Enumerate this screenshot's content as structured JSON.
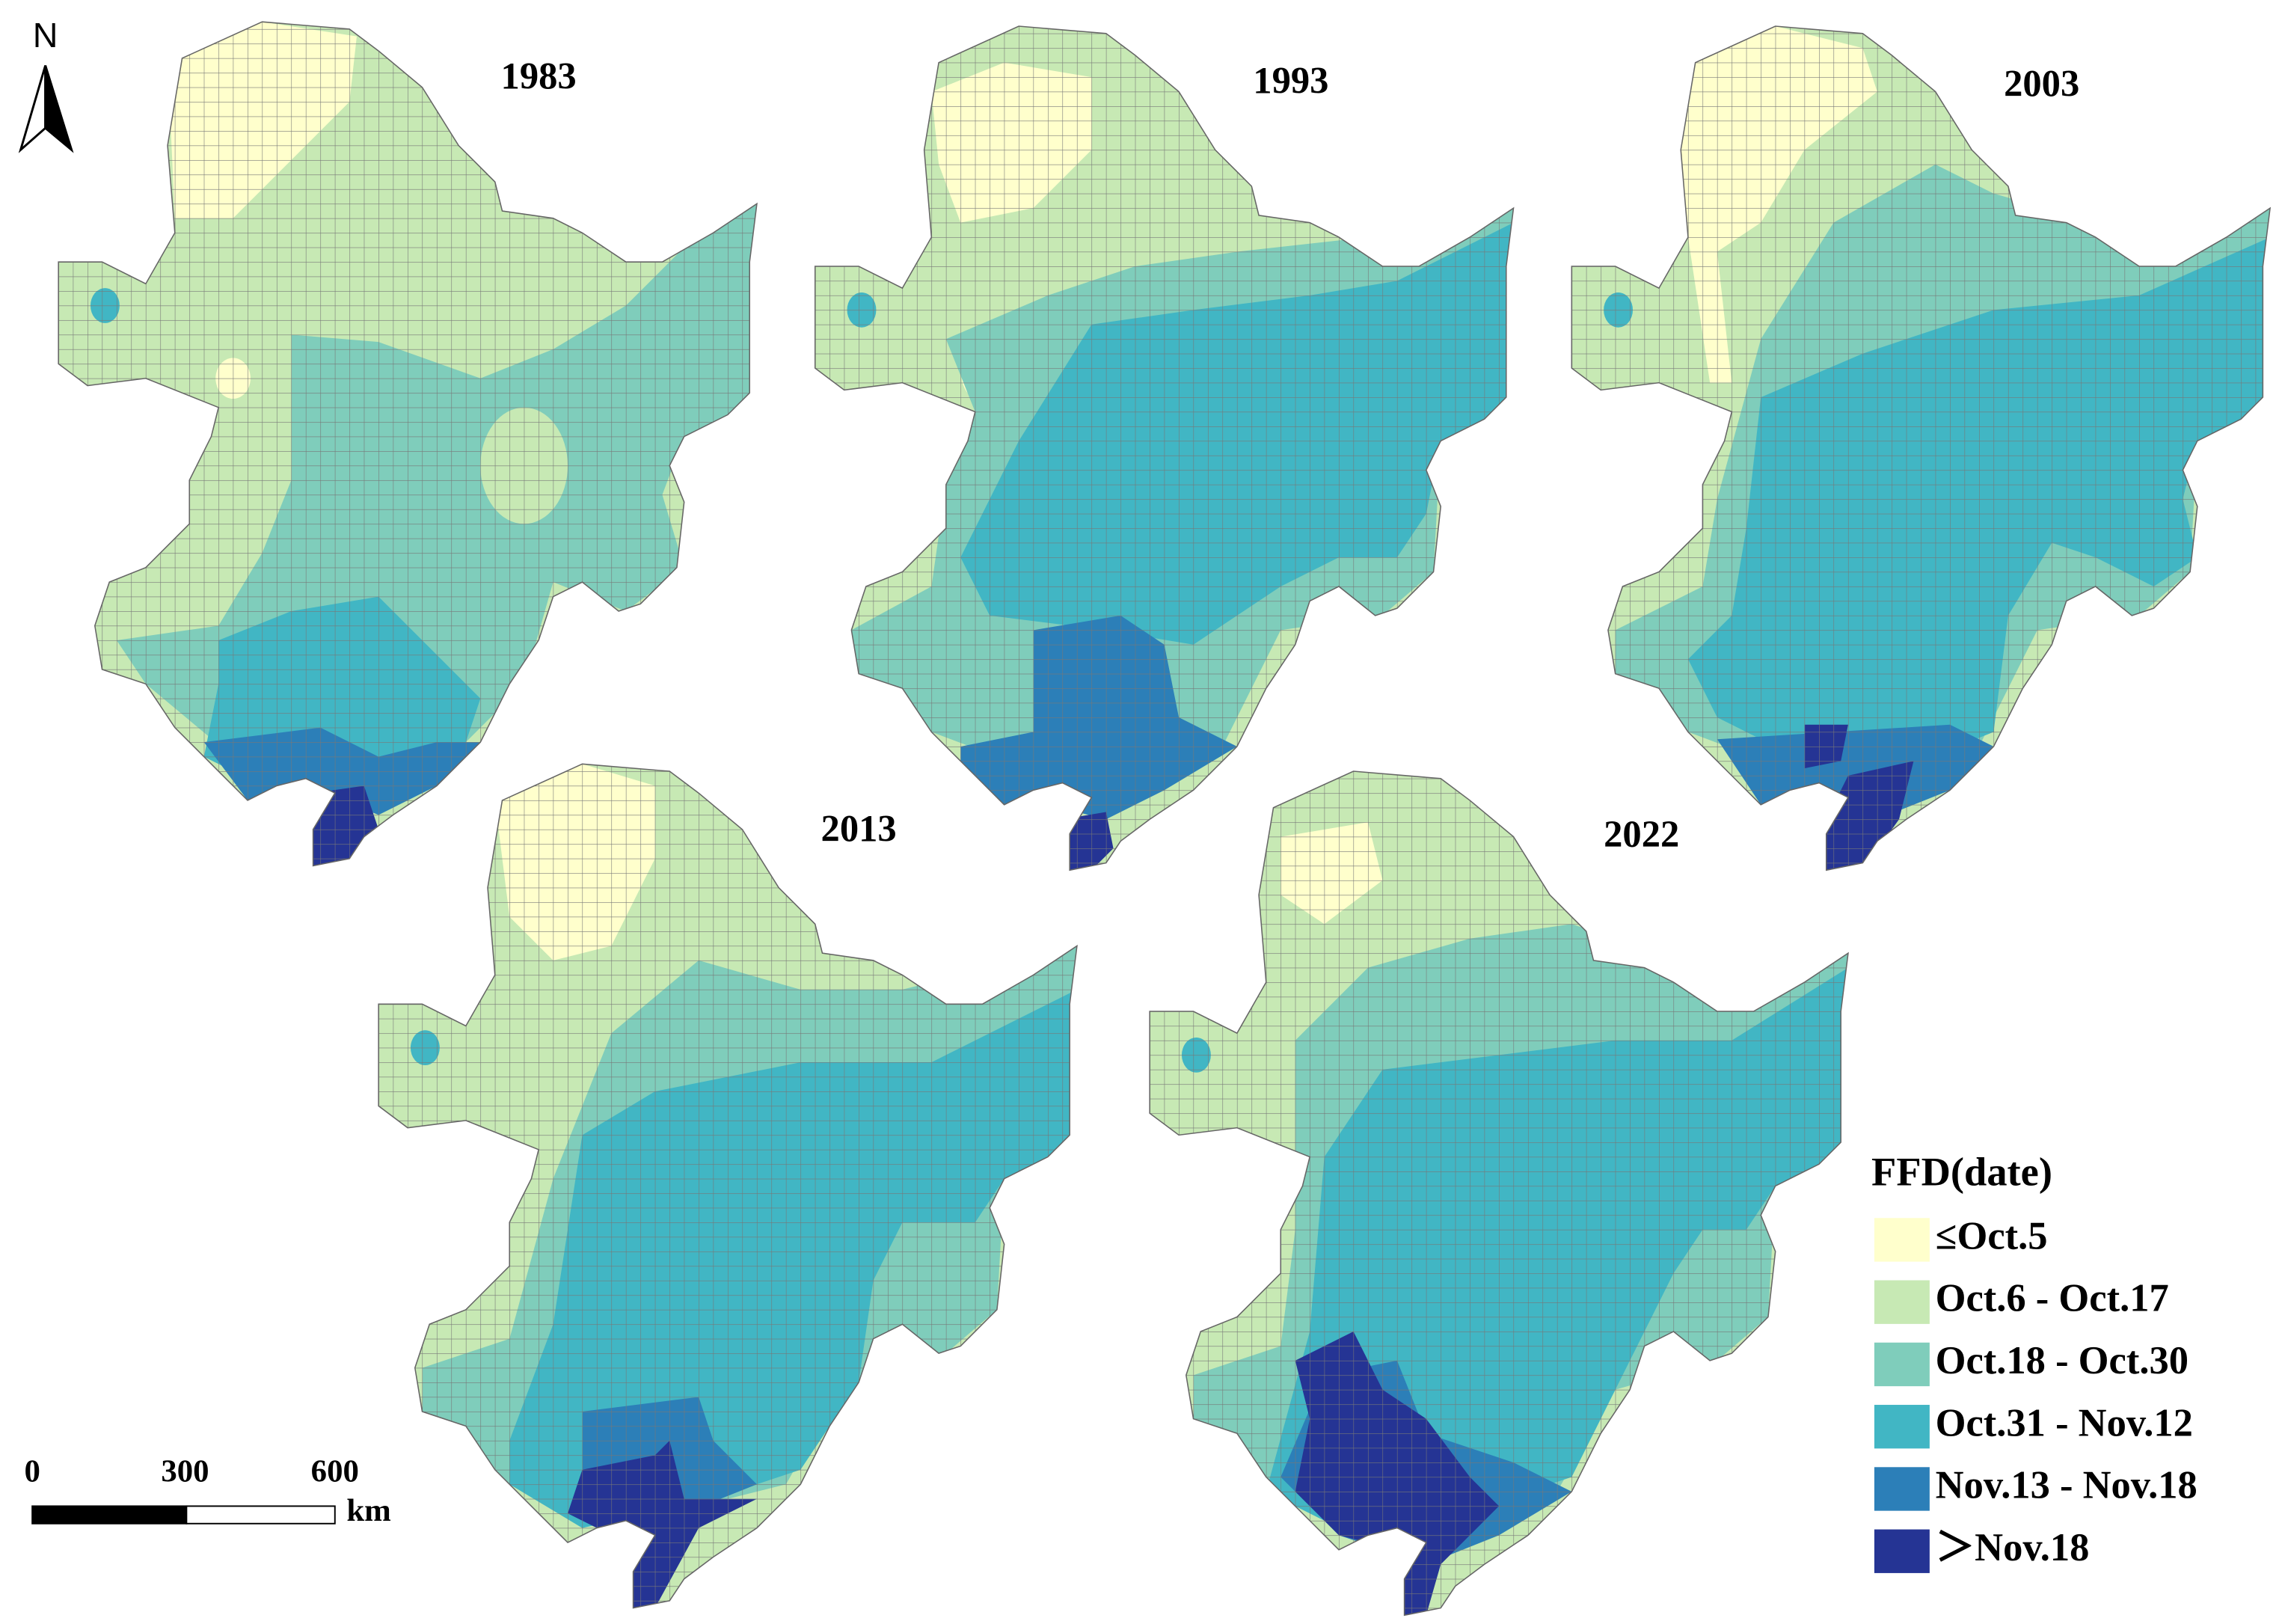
{
  "north": "N",
  "maps": [
    {
      "year": "1983"
    },
    {
      "year": "1993"
    },
    {
      "year": "2003"
    },
    {
      "year": "2013"
    },
    {
      "year": "2022"
    }
  ],
  "scale_bar": {
    "ticks": [
      0,
      300,
      600
    ],
    "unit": "km"
  },
  "legend": {
    "title": "FFD(date)",
    "items": [
      {
        "label": "≤Oct.5",
        "color": "#ffffcc"
      },
      {
        "label": "Oct.6 - Oct.17",
        "color": "#c7e9b4"
      },
      {
        "label": "Oct.18 - Oct.30",
        "color": "#7fcdbb"
      },
      {
        "label": "Oct.31 - Nov.12",
        "color": "#41b6c4"
      },
      {
        "label": "Nov.13 - Nov.18",
        "color": "#2c7fb8"
      },
      {
        "label": "＞Nov.18",
        "color": "#253494"
      }
    ]
  }
}
